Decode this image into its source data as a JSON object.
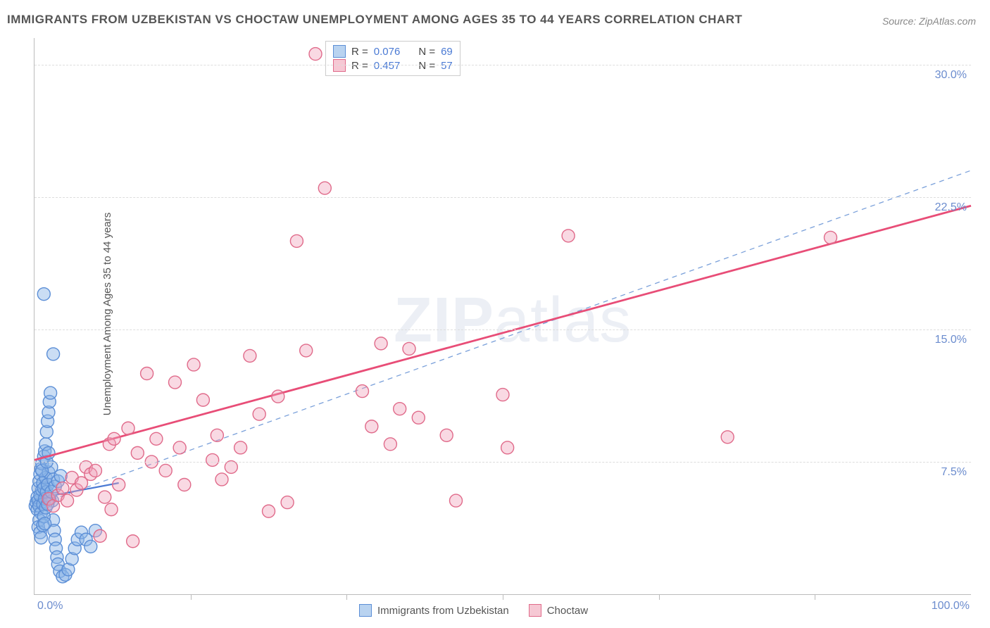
{
  "title": "IMMIGRANTS FROM UZBEKISTAN VS CHOCTAW UNEMPLOYMENT AMONG AGES 35 TO 44 YEARS CORRELATION CHART",
  "source": "Source: ZipAtlas.com",
  "ylabel": "Unemployment Among Ages 35 to 44 years",
  "watermark_zip": "ZIP",
  "watermark_atlas": "atlas",
  "chart": {
    "type": "scatter",
    "background_color": "#ffffff",
    "grid_color": "#dddddd",
    "axis_color": "#bbbbbb",
    "tick_color": "#6b8cce",
    "xlim": [
      0,
      100
    ],
    "ylim": [
      0,
      31.5
    ],
    "yticks": [
      {
        "v": 7.5,
        "label": "7.5%"
      },
      {
        "v": 15.0,
        "label": "15.0%"
      },
      {
        "v": 22.5,
        "label": "22.5%"
      },
      {
        "v": 30.0,
        "label": "30.0%"
      }
    ],
    "xticks": {
      "min_label": "0.0%",
      "max_label": "100.0%",
      "marks": [
        16.7,
        33.3,
        50.0,
        66.7,
        83.3
      ]
    }
  },
  "legend_top": {
    "series": [
      {
        "swatch_fill": "#b9d3f0",
        "swatch_border": "#5b8ed6",
        "r_label": "R =",
        "r_value": "0.076",
        "n_label": "N =",
        "n_value": "69"
      },
      {
        "swatch_fill": "#f6c8d4",
        "swatch_border": "#e06a8a",
        "r_label": "R =",
        "r_value": "0.457",
        "n_label": "N =",
        "n_value": "57"
      }
    ]
  },
  "legend_bottom": {
    "items": [
      {
        "swatch_fill": "#b9d3f0",
        "swatch_border": "#5b8ed6",
        "label": "Immigrants from Uzbekistan"
      },
      {
        "swatch_fill": "#f6c8d4",
        "swatch_border": "#e06a8a",
        "label": "Choctaw"
      }
    ]
  },
  "series": [
    {
      "name": "Immigrants from Uzbekistan",
      "marker_fill": "rgba(137,180,230,0.45)",
      "marker_stroke": "#5b8ed6",
      "marker_radius": 9,
      "trend": {
        "dashed": false,
        "color": "#4a7ad4",
        "width": 2.2,
        "x1": 0,
        "y1": 5.4,
        "x2": 9,
        "y2": 6.3
      },
      "trend_ext": {
        "dashed": true,
        "color": "#7aa0da",
        "width": 1.3,
        "x1": 0,
        "y1": 5.0,
        "x2": 100,
        "y2": 24.0
      },
      "points": [
        [
          0.1,
          5.0
        ],
        [
          0.2,
          5.2
        ],
        [
          0.3,
          5.5
        ],
        [
          0.3,
          4.8
        ],
        [
          0.4,
          6.0
        ],
        [
          0.4,
          5.3
        ],
        [
          0.5,
          6.4
        ],
        [
          0.5,
          5.0
        ],
        [
          0.6,
          6.8
        ],
        [
          0.6,
          5.6
        ],
        [
          0.7,
          7.1
        ],
        [
          0.7,
          4.6
        ],
        [
          0.8,
          7.4
        ],
        [
          0.8,
          5.9
        ],
        [
          0.9,
          6.3
        ],
        [
          0.9,
          5.1
        ],
        [
          1.0,
          7.8
        ],
        [
          1.0,
          6.0
        ],
        [
          1.1,
          8.1
        ],
        [
          1.1,
          5.4
        ],
        [
          1.2,
          8.5
        ],
        [
          1.2,
          6.6
        ],
        [
          1.3,
          9.2
        ],
        [
          1.3,
          5.8
        ],
        [
          1.4,
          9.8
        ],
        [
          1.4,
          6.2
        ],
        [
          1.5,
          10.3
        ],
        [
          1.5,
          6.9
        ],
        [
          1.6,
          10.9
        ],
        [
          1.7,
          11.4
        ],
        [
          1.8,
          7.2
        ],
        [
          1.9,
          5.3
        ],
        [
          2.0,
          4.2
        ],
        [
          2.1,
          3.6
        ],
        [
          2.2,
          3.1
        ],
        [
          2.3,
          2.6
        ],
        [
          2.4,
          2.1
        ],
        [
          2.0,
          6.5
        ],
        [
          2.5,
          1.7
        ],
        [
          2.7,
          1.3
        ],
        [
          3.0,
          1.0
        ],
        [
          3.3,
          1.1
        ],
        [
          3.6,
          1.4
        ],
        [
          4.0,
          2.0
        ],
        [
          4.3,
          2.6
        ],
        [
          4.6,
          3.1
        ],
        [
          5.0,
          3.5
        ],
        [
          5.5,
          3.1
        ],
        [
          6.0,
          2.7
        ],
        [
          6.5,
          3.6
        ],
        [
          2.0,
          13.6
        ],
        [
          1.0,
          17.0
        ],
        [
          0.8,
          7.0
        ],
        [
          0.5,
          4.2
        ],
        [
          0.4,
          3.8
        ],
        [
          0.6,
          3.5
        ],
        [
          0.7,
          3.2
        ],
        [
          0.9,
          3.9
        ],
        [
          1.0,
          4.4
        ],
        [
          1.1,
          4.0
        ],
        [
          1.2,
          4.9
        ],
        [
          1.4,
          5.1
        ],
        [
          1.6,
          5.4
        ],
        [
          1.8,
          5.8
        ],
        [
          2.2,
          6.1
        ],
        [
          2.5,
          6.4
        ],
        [
          2.8,
          6.7
        ],
        [
          1.3,
          7.5
        ],
        [
          1.5,
          8.0
        ]
      ]
    },
    {
      "name": "Choctaw",
      "marker_fill": "rgba(240,160,185,0.40)",
      "marker_stroke": "#e06a8a",
      "marker_radius": 9,
      "trend": {
        "dashed": false,
        "color": "#e84d77",
        "width": 2.8,
        "x1": 0,
        "y1": 7.6,
        "x2": 100,
        "y2": 22.0
      },
      "points": [
        [
          1.5,
          5.4
        ],
        [
          2.0,
          5.0
        ],
        [
          2.5,
          5.6
        ],
        [
          3.0,
          6.0
        ],
        [
          3.5,
          5.3
        ],
        [
          4.0,
          6.6
        ],
        [
          4.5,
          5.9
        ],
        [
          5.0,
          6.3
        ],
        [
          5.5,
          7.2
        ],
        [
          6.0,
          6.8
        ],
        [
          6.5,
          7.0
        ],
        [
          7.0,
          3.3
        ],
        [
          7.5,
          5.5
        ],
        [
          8.0,
          8.5
        ],
        [
          8.5,
          8.8
        ],
        [
          9.0,
          6.2
        ],
        [
          10.0,
          9.4
        ],
        [
          10.5,
          3.0
        ],
        [
          11.0,
          8.0
        ],
        [
          12.0,
          12.5
        ],
        [
          13.0,
          8.8
        ],
        [
          14.0,
          7.0
        ],
        [
          15.0,
          12.0
        ],
        [
          16.0,
          6.2
        ],
        [
          17.0,
          13.0
        ],
        [
          18.0,
          11.0
        ],
        [
          19.0,
          7.6
        ],
        [
          20.0,
          6.5
        ],
        [
          21.0,
          7.2
        ],
        [
          22.0,
          8.3
        ],
        [
          23.0,
          13.5
        ],
        [
          24.0,
          10.2
        ],
        [
          25.0,
          4.7
        ],
        [
          26.0,
          11.2
        ],
        [
          27.0,
          5.2
        ],
        [
          28.0,
          20.0
        ],
        [
          29.0,
          13.8
        ],
        [
          30.0,
          30.6
        ],
        [
          31.0,
          23.0
        ],
        [
          35.0,
          11.5
        ],
        [
          36.0,
          9.5
        ],
        [
          37.0,
          14.2
        ],
        [
          38.0,
          8.5
        ],
        [
          39.0,
          10.5
        ],
        [
          40.0,
          13.9
        ],
        [
          41.0,
          10.0
        ],
        [
          44.0,
          9.0
        ],
        [
          45.0,
          5.3
        ],
        [
          50.0,
          11.3
        ],
        [
          50.5,
          8.3
        ],
        [
          57.0,
          20.3
        ],
        [
          74.0,
          8.9
        ],
        [
          85.0,
          20.2
        ],
        [
          15.5,
          8.3
        ],
        [
          19.5,
          9.0
        ],
        [
          12.5,
          7.5
        ],
        [
          8.2,
          4.8
        ]
      ]
    }
  ]
}
